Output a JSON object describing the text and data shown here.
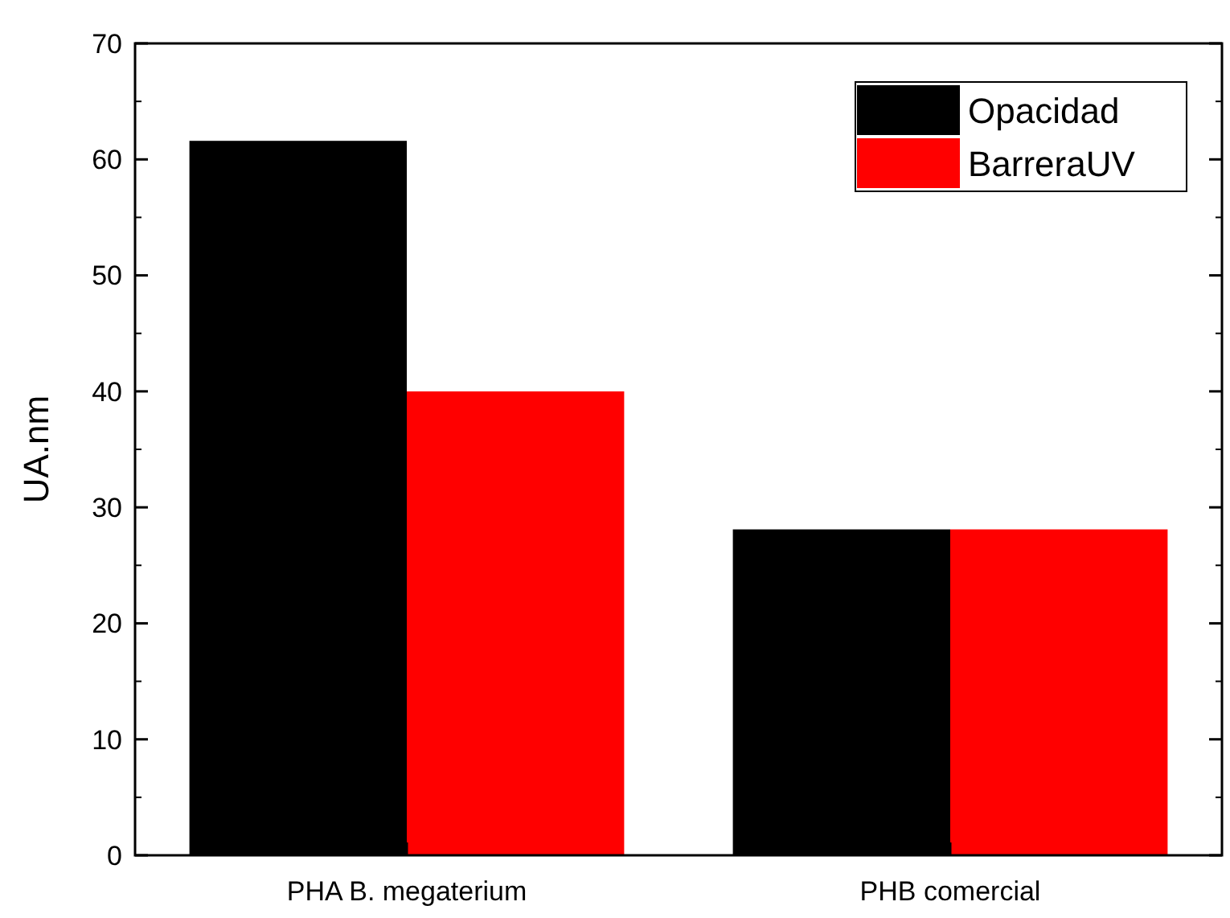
{
  "chart_data": {
    "type": "bar",
    "ylabel": "UA.nm",
    "categories": [
      "PHA B. megaterium",
      "PHB comercial"
    ],
    "series": [
      {
        "name": "Opacidad",
        "color": "#000000",
        "values": [
          61.6,
          28.1
        ]
      },
      {
        "name": "BarreraUV",
        "color": "#ff0000",
        "values": [
          40,
          28.1
        ]
      }
    ],
    "ylim": [
      0,
      70
    ],
    "yticks": [
      0,
      10,
      20,
      30,
      40,
      50,
      60,
      70
    ],
    "grid": false,
    "legend": "top right"
  }
}
